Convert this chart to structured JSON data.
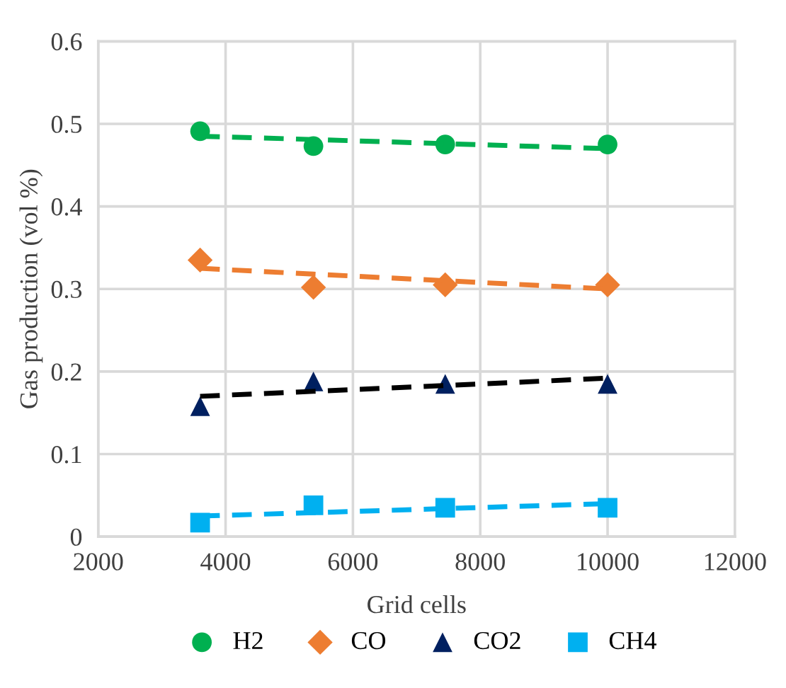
{
  "chart_data": {
    "type": "scatter",
    "xlabel": "Grid cells",
    "ylabel": "Gas production (vol %)",
    "x": [
      3600,
      5380,
      7450,
      10000
    ],
    "series": [
      {
        "name": "H2",
        "color": "#00b050",
        "marker": "circle",
        "values": [
          0.491,
          0.473,
          0.475,
          0.475
        ]
      },
      {
        "name": "CO",
        "color": "#ed7d31",
        "marker": "diamond",
        "values": [
          0.335,
          0.302,
          0.305,
          0.305
        ]
      },
      {
        "name": "CO2",
        "color": "#002060",
        "marker": "triangle",
        "values": [
          0.158,
          0.188,
          0.185,
          0.185
        ]
      },
      {
        "name": "CH4",
        "color": "#00b0f0",
        "marker": "square",
        "values": [
          0.017,
          0.038,
          0.035,
          0.035
        ]
      },
      {
        "type": "line",
        "color": "#00b050",
        "line_style": "dashed",
        "values": [
          0.485,
          0.481,
          0.476,
          0.47
        ]
      },
      {
        "type": "line",
        "color": "#ed7d31",
        "line_style": "dashed",
        "values": [
          0.325,
          0.318,
          0.31,
          0.3
        ]
      },
      {
        "type": "line",
        "color": "#000000",
        "line_style": "dashed",
        "values": [
          0.17,
          0.176,
          0.183,
          0.192
        ]
      },
      {
        "type": "line",
        "color": "#00b0f0",
        "line_style": "dashed",
        "values": [
          0.025,
          0.029,
          0.034,
          0.04
        ]
      }
    ],
    "xlim": [
      2000,
      12000
    ],
    "xticks": [
      2000,
      4000,
      6000,
      8000,
      10000,
      12000
    ],
    "ylim": [
      0,
      0.6
    ],
    "yticks": [
      0,
      0.1,
      0.2,
      0.3,
      0.4,
      0.5,
      0.6
    ],
    "grid": true,
    "legend": "bottom"
  }
}
